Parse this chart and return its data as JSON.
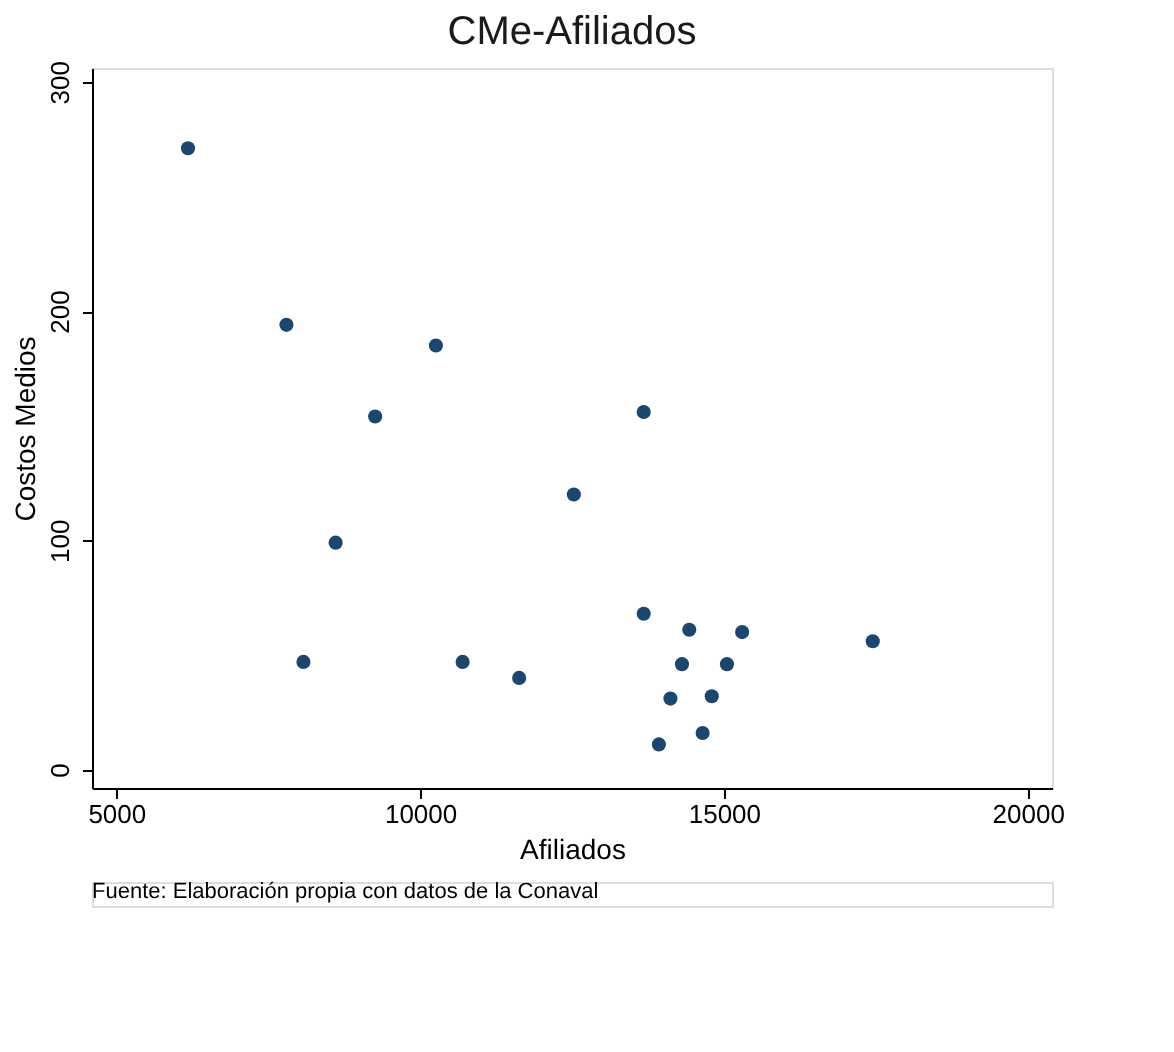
{
  "chart_data": {
    "type": "scatter",
    "title": "CMe-Afiliados",
    "xlabel": "Afiliados",
    "ylabel": "Costos Medios",
    "annotations": [
      "Fuente: Elaboración propia con datos de la Conaval"
    ],
    "x": [
      6180,
      7800,
      8080,
      8610,
      9260,
      10260,
      10700,
      11630,
      12530,
      13680,
      13680,
      13930,
      14120,
      14310,
      14430,
      14650,
      14800,
      15050,
      15300,
      17450
    ],
    "series": [
      {
        "color": "#1a476f",
        "values": [
          271,
          194,
          47,
          99,
          154,
          185,
          47,
          40,
          120,
          156,
          68,
          11,
          31,
          46,
          61,
          16,
          32,
          46,
          60,
          56
        ]
      }
    ],
    "xlim": [
      4600,
      20400
    ],
    "xticks": [
      5000,
      10000,
      15000,
      20000
    ],
    "ylim": [
      -8,
      306
    ],
    "yticks": [
      0,
      100,
      200,
      300
    ],
    "grid": false,
    "legend": false,
    "marker": "circle"
  }
}
